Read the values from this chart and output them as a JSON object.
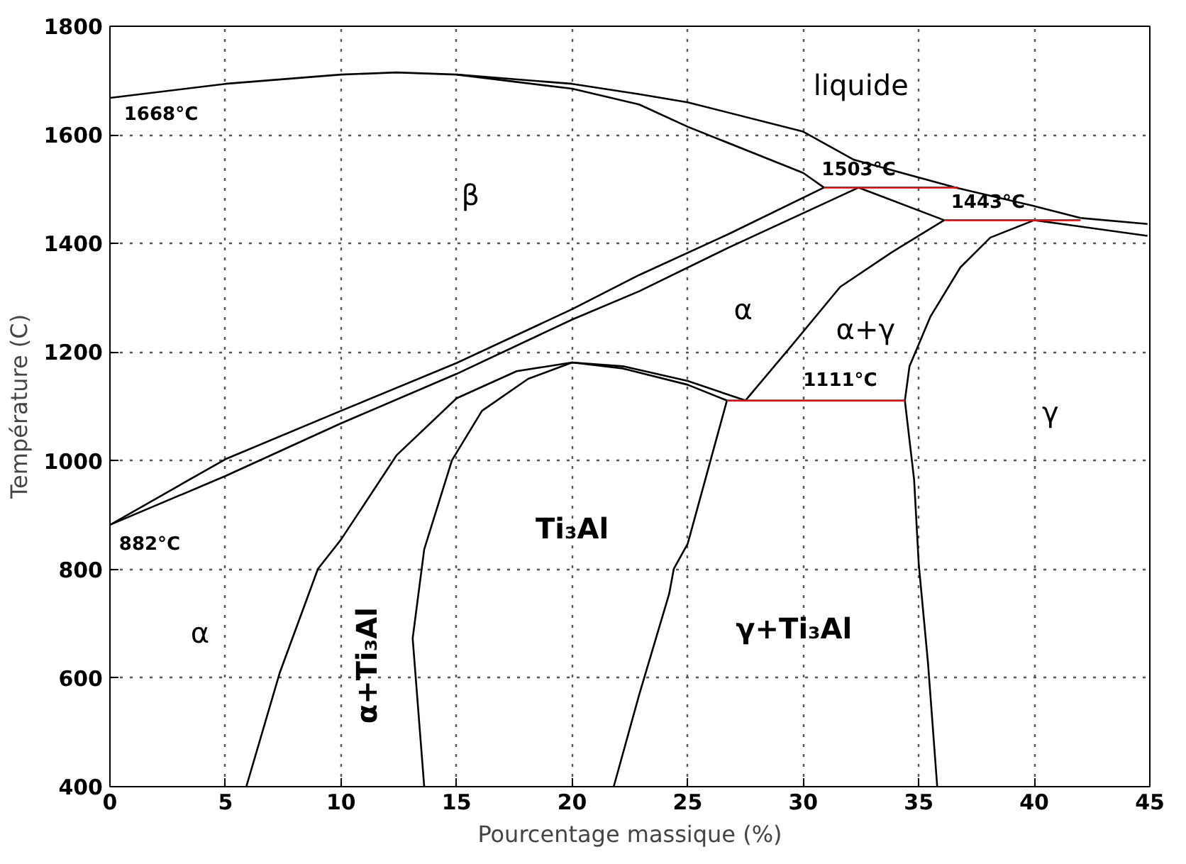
{
  "chart_data": {
    "type": "line",
    "xlabel": "Pourcentage massique (%)",
    "ylabel": "Température (C)",
    "xlim": [
      0,
      45
    ],
    "ylim": [
      400,
      1800
    ],
    "xticks": [
      0,
      5,
      10,
      15,
      20,
      25,
      30,
      35,
      40,
      45
    ],
    "yticks": [
      400,
      600,
      800,
      1000,
      1200,
      1400,
      1600,
      1800
    ],
    "grid": true,
    "marker": "none",
    "line_style": "solid",
    "series": [
      {
        "color": "#000000",
        "x": [
          0,
          5,
          10,
          12.4,
          15,
          20,
          22.9,
          25,
          30,
          32.2,
          36.6,
          39.9,
          42,
          44.9
        ],
        "values": [
          1668,
          1694,
          1711,
          1715,
          1711,
          1694,
          1675,
          1660,
          1606,
          1554,
          1503,
          1470,
          1447,
          1436
        ]
      },
      {
        "color": "#000000",
        "x": [
          15,
          20,
          22.9,
          25,
          30,
          30.9
        ],
        "values": [
          1711,
          1685,
          1656,
          1615,
          1530,
          1503
        ]
      },
      {
        "color": "#000000",
        "x": [
          0,
          5,
          10,
          15,
          20,
          22.9,
          26.8,
          30.9
        ],
        "values": [
          882,
          1003,
          1092,
          1180,
          1279,
          1342,
          1418,
          1503
        ]
      },
      {
        "color": "#000000",
        "x": [
          0,
          5,
          10,
          15,
          20,
          22.9,
          26.8,
          32.4
        ],
        "values": [
          882,
          972,
          1069,
          1160,
          1260,
          1312,
          1393,
          1503
        ]
      },
      {
        "color": "#000000",
        "x": [
          32.4,
          36.1
        ],
        "values": [
          1503,
          1443
        ]
      },
      {
        "color": "#000000",
        "x": [
          5.9,
          7.35,
          9.0,
          10,
          12.4,
          15,
          17.6,
          20,
          22.2,
          25,
          27.5
        ],
        "values": [
          400,
          610,
          801,
          855,
          1010,
          1115,
          1165,
          1181,
          1174,
          1147,
          1111
        ]
      },
      {
        "color": "#000000",
        "x": [
          13.6,
          13.1,
          13.6,
          14.8,
          16.1,
          18.1,
          20,
          22.2,
          25,
          26.7
        ],
        "values": [
          400,
          673,
          837,
          1001,
          1092,
          1151,
          1181,
          1170,
          1140,
          1111
        ]
      },
      {
        "color": "#000000",
        "x": [
          26.7,
          25.0,
          24.4,
          24.2,
          22.9,
          21.8
        ],
        "values": [
          1111,
          847,
          801,
          755,
          569,
          400
        ]
      },
      {
        "color": "#000000",
        "x": [
          27.5,
          29.4,
          31.6,
          33.8,
          36.1
        ],
        "values": [
          1111,
          1207,
          1320,
          1383,
          1443
        ]
      },
      {
        "color": "#000000",
        "x": [
          35.8,
          35.4,
          35.0,
          34.8,
          34.4,
          34.6,
          35.5,
          36.8,
          38.1,
          40,
          44.9
        ],
        "values": [
          400,
          628,
          810,
          965,
          1111,
          1174,
          1265,
          1356,
          1411,
          1443,
          1414
        ]
      },
      {
        "color": "#ff0000",
        "x": [
          30.9,
          36.7
        ],
        "values": [
          1503,
          1503
        ]
      },
      {
        "color": "#ff0000",
        "x": [
          36.1,
          42
        ],
        "values": [
          1443,
          1443
        ]
      },
      {
        "color": "#ff0000",
        "x": [
          26.7,
          34.4
        ],
        "values": [
          1111,
          1111
        ]
      }
    ],
    "annotations": [
      {
        "text": "1668°C",
        "x": 0,
        "y": 1668
      },
      "liquide",
      "β",
      {
        "text": "1503°C",
        "x": 32.4,
        "y": 1503
      },
      {
        "text": "1443°C",
        "x": 38,
        "y": 1443
      },
      "α",
      "α+γ",
      {
        "text": "1111°C",
        "x": 31.6,
        "y": 1111
      },
      "γ",
      {
        "text": "882°C",
        "x": 0,
        "y": 882
      },
      "Ti₃Al",
      "α",
      "α+Ti₃Al",
      "γ+Ti₃Al"
    ]
  }
}
